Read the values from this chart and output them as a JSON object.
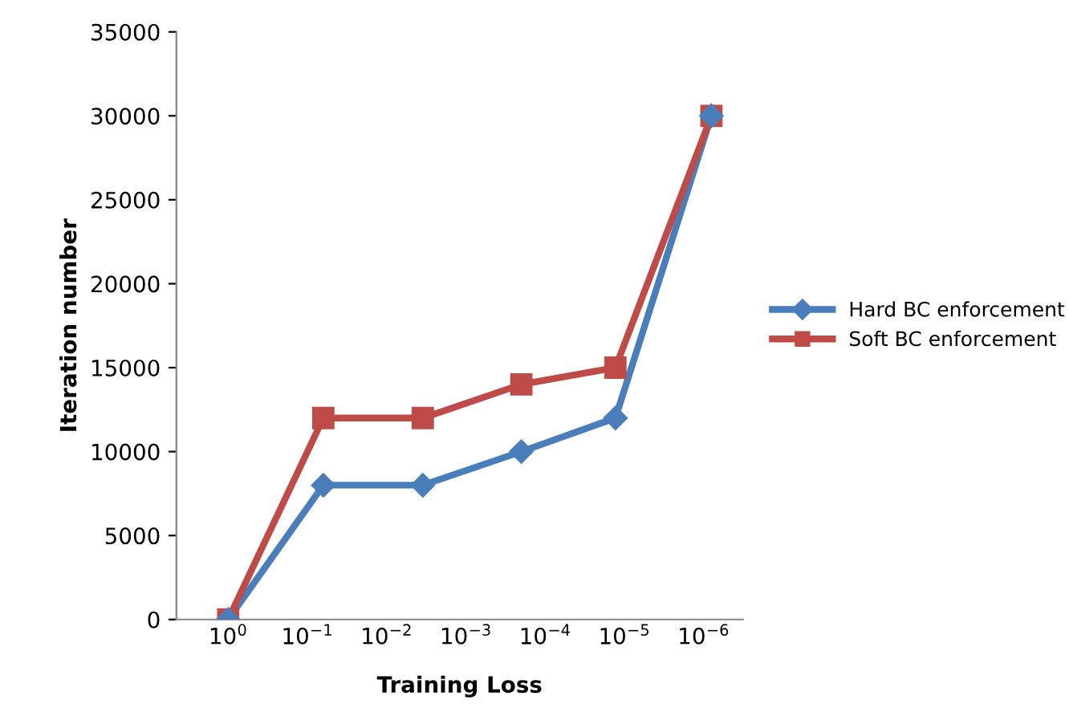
{
  "chart_data": {
    "type": "line",
    "xlabel": "Training Loss",
    "ylabel": "Iteration number",
    "log": "x",
    "xlim": [
      4.5,
      3.2e-07
    ],
    "xticks": [
      {
        "value": 1,
        "label": "10$^{0}$"
      },
      {
        "value": 0.1,
        "label": "10$^{−1}$"
      },
      {
        "value": 0.01,
        "label": "10$^{−2}$"
      },
      {
        "value": 0.001,
        "label": "10$^{−3}$"
      },
      {
        "value": 0.0001,
        "label": "10$^{−4}$"
      },
      {
        "value": 1e-05,
        "label": "10$^{−5}$"
      },
      {
        "value": 1e-06,
        "label": "10$^{−6}$"
      }
    ],
    "ylim": [
      0,
      35000
    ],
    "yticks": [
      0,
      5000,
      10000,
      15000,
      20000,
      25000,
      30000,
      35000
    ],
    "grid": false,
    "legend": "right",
    "series": [
      {
        "name": "Hard BC enforcement",
        "color": "#4a7ebb",
        "marker": "diamond",
        "x": [
          1,
          0.063,
          0.0035,
          0.0002,
          1.3e-05,
          8e-07
        ],
        "values": [
          0,
          8000,
          8000,
          10000,
          12000,
          30000
        ]
      },
      {
        "name": "Soft BC enforcement",
        "color": "#be4b48",
        "marker": "square",
        "x": [
          1,
          0.063,
          0.0035,
          0.0002,
          1.3e-05,
          8e-07
        ],
        "values": [
          0,
          12000,
          12000,
          14000,
          15000,
          30000
        ]
      }
    ]
  }
}
